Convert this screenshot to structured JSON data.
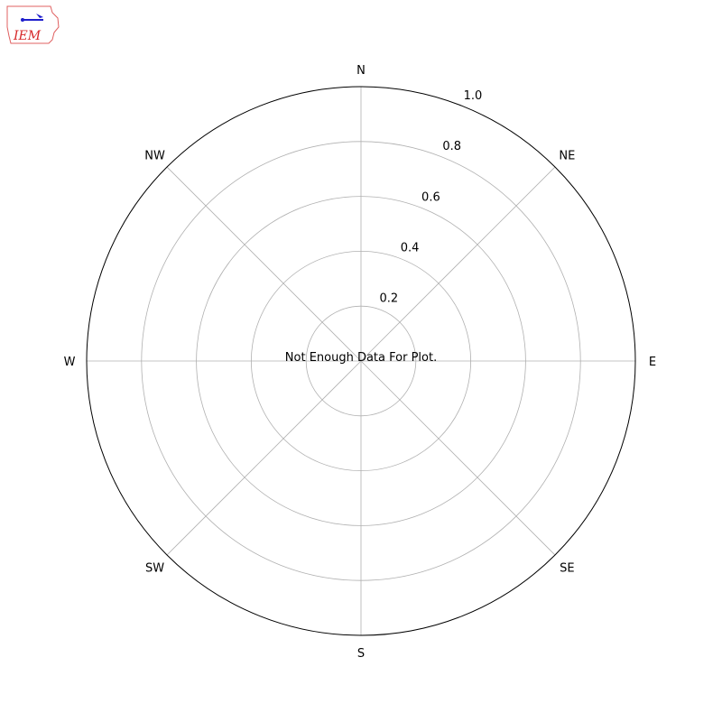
{
  "logo": {
    "text": "IEM"
  },
  "chart_data": {
    "type": "polar",
    "title": "",
    "message": "Not Enough Data For Plot.",
    "direction_labels": [
      "N",
      "NE",
      "E",
      "SE",
      "S",
      "SW",
      "W",
      "NW"
    ],
    "radial_ticks": [
      0.2,
      0.4,
      0.6,
      0.8,
      1.0
    ],
    "radial_tick_labels": [
      "0.2",
      "0.4",
      "0.6",
      "0.8",
      "1.0"
    ],
    "rlim": [
      0,
      1.0
    ],
    "grid": true,
    "series": [],
    "colors": {
      "grid": "#b0b0b0",
      "frame": "#000000",
      "logo_red": "#d62728",
      "logo_blue": "#1f1fcc"
    }
  }
}
